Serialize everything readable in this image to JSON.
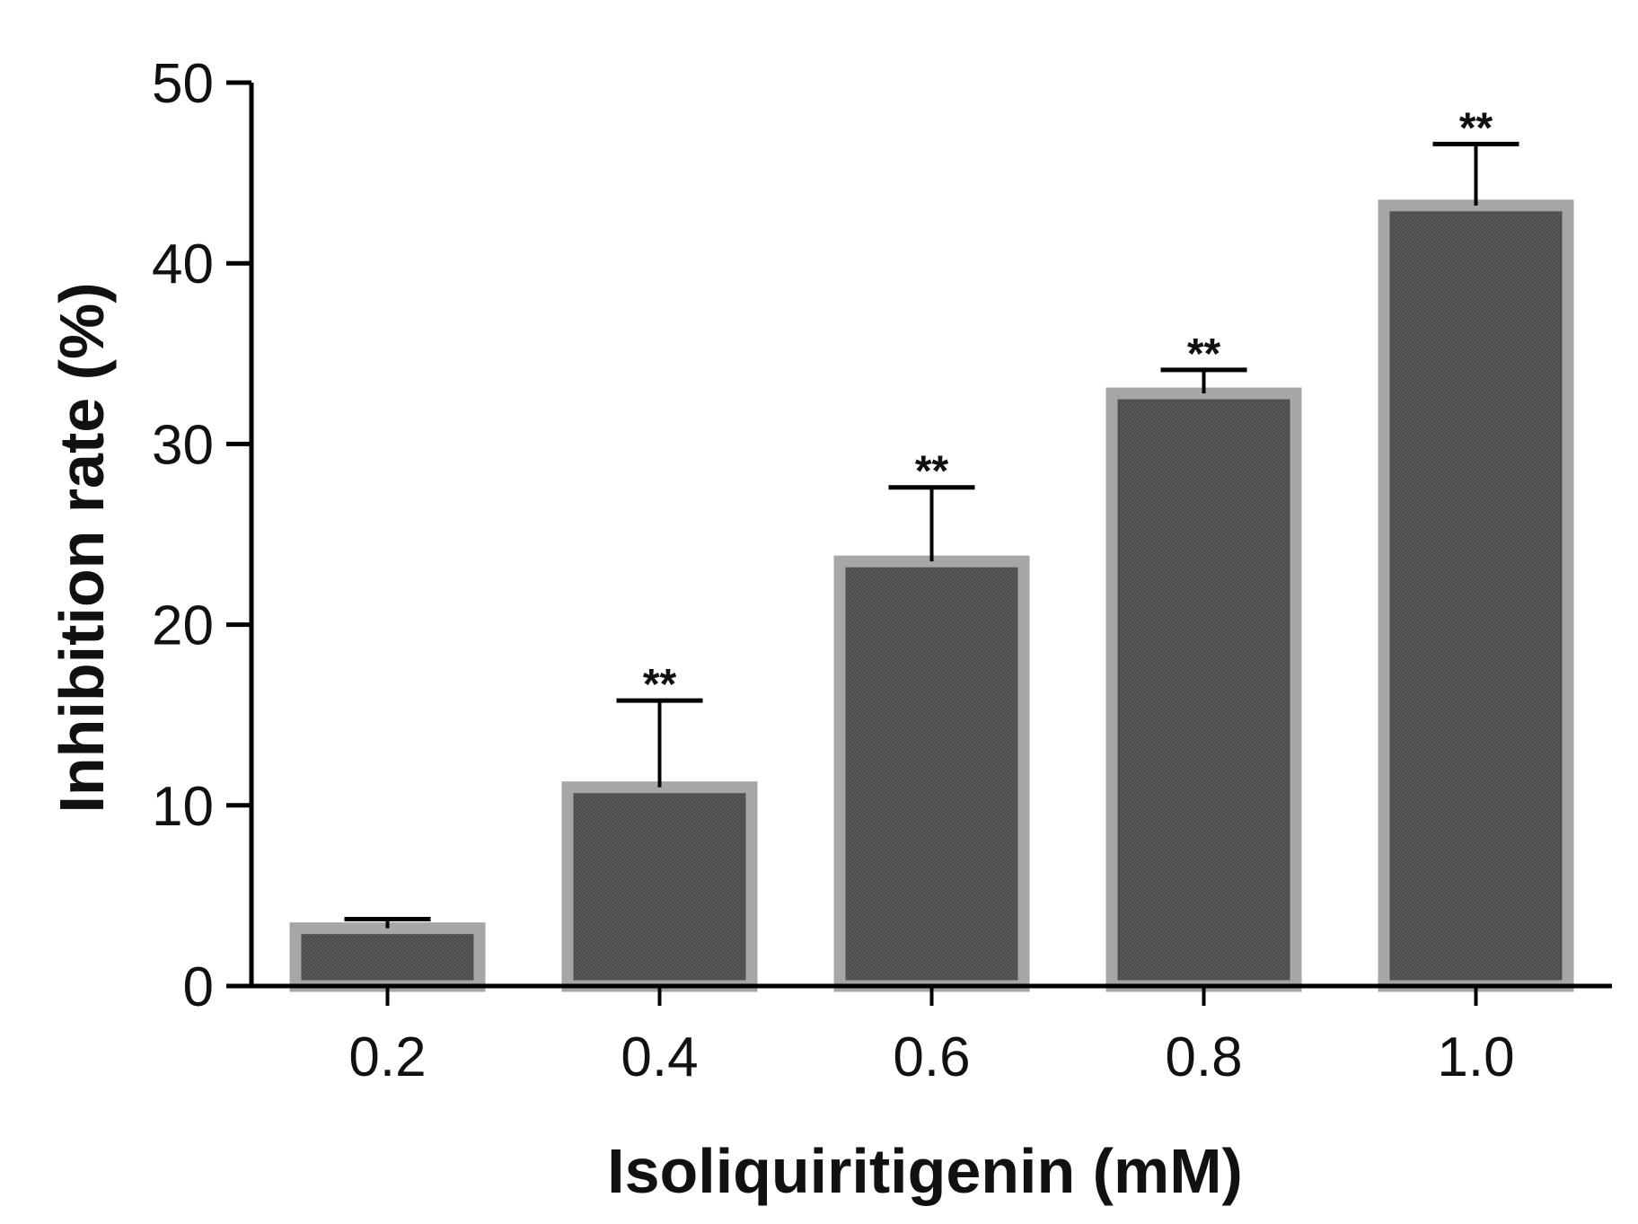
{
  "chart_data": {
    "type": "bar",
    "title": "",
    "xlabel": "Isoliquiritigenin (mM)",
    "ylabel": "Inhibition rate (%)",
    "ylim": [
      0,
      50
    ],
    "yticks": [
      "0",
      "10",
      "20",
      "30",
      "40",
      "50"
    ],
    "categories": [
      "0.2",
      "0.4",
      "0.6",
      "0.8",
      "1.0"
    ],
    "values": [
      3.2,
      11.0,
      23.5,
      32.8,
      43.2
    ],
    "error_upper": [
      0.5,
      4.8,
      4.1,
      1.3,
      3.4
    ],
    "significance": [
      "",
      "**",
      "**",
      "**",
      "**"
    ],
    "grid": false,
    "bar_fill_color": "#565656",
    "bar_border_color": "#a6a6a6",
    "axis_color": "#000000"
  }
}
